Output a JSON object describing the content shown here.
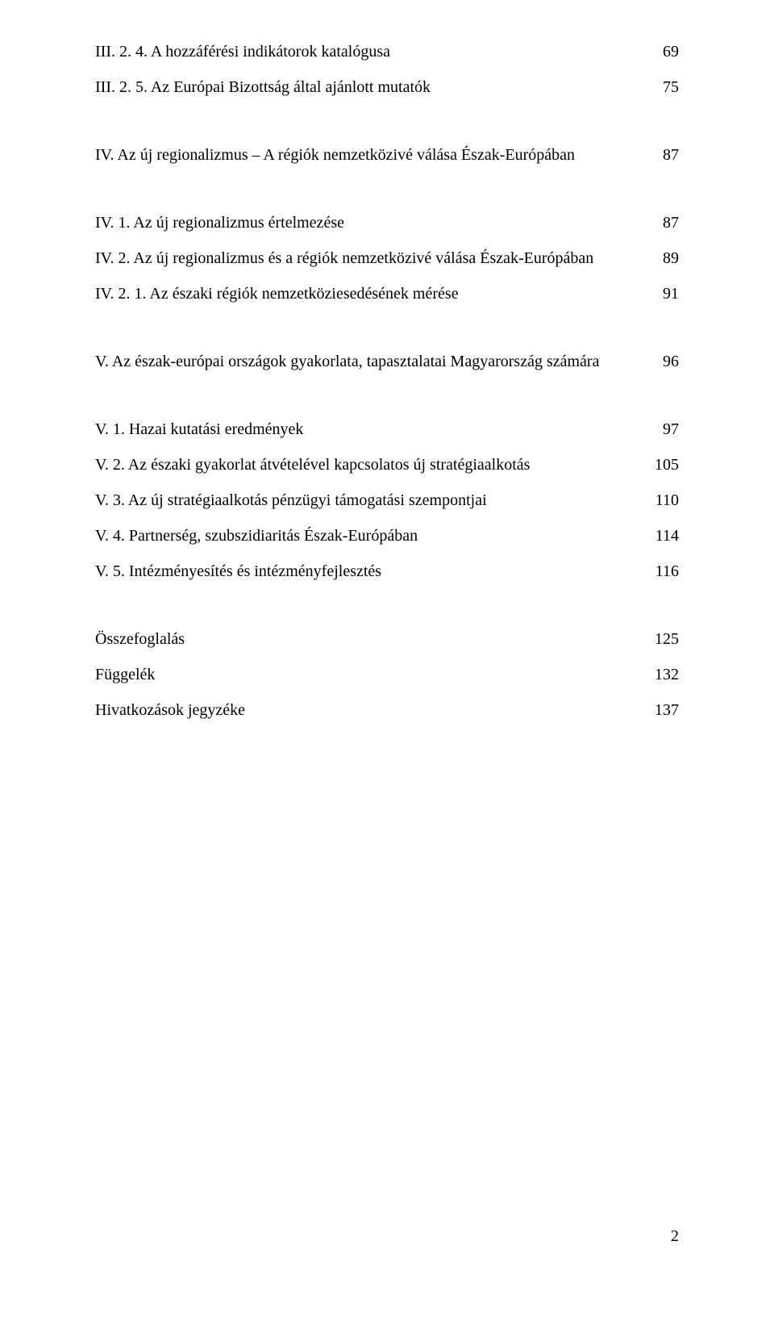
{
  "toc": {
    "entries": [
      {
        "text": "III. 2. 4. A hozzáférési indikátorok katalógusa",
        "page": "69"
      },
      {
        "text": "III. 2. 5. Az Európai Bizottság által ajánlott mutatók",
        "page": "75"
      }
    ],
    "section_iv": {
      "header": {
        "text": "IV. Az új regionalizmus – A régiók nemzetközivé válása Észak-Európában",
        "page": "87"
      },
      "entries": [
        {
          "text": "IV. 1. Az új regionalizmus értelmezése",
          "page": "87"
        },
        {
          "text": "IV. 2. Az új regionalizmus és a régiók nemzetközivé válása Észak-Európában",
          "page": "89"
        },
        {
          "text": "IV. 2. 1. Az északi régiók nemzetköziesedésének mérése",
          "page": "91"
        }
      ]
    },
    "section_v": {
      "header": {
        "text": "V. Az észak-európai országok gyakorlata, tapasztalatai Magyarország számára",
        "page": "96"
      },
      "entries": [
        {
          "text": "V. 1. Hazai kutatási eredmények",
          "page": "97"
        },
        {
          "text": "V. 2. Az északi gyakorlat átvételével kapcsolatos új stratégiaalkotás",
          "page": "105"
        },
        {
          "text": "V. 3. Az új stratégiaalkotás pénzügyi támogatási szempontjai",
          "page": "110"
        },
        {
          "text": "V. 4. Partnerség, szubszidiaritás Észak-Európában",
          "page": "114"
        },
        {
          "text": "V. 5. Intézményesítés és intézményfejlesztés",
          "page": "116"
        }
      ]
    },
    "backmatter": [
      {
        "text": "Összefoglalás",
        "page": "125"
      },
      {
        "text": "Függelék",
        "page": "132"
      },
      {
        "text": "Hivatkozások jegyzéke",
        "page": "137"
      }
    ]
  },
  "footer_page_number": "2"
}
